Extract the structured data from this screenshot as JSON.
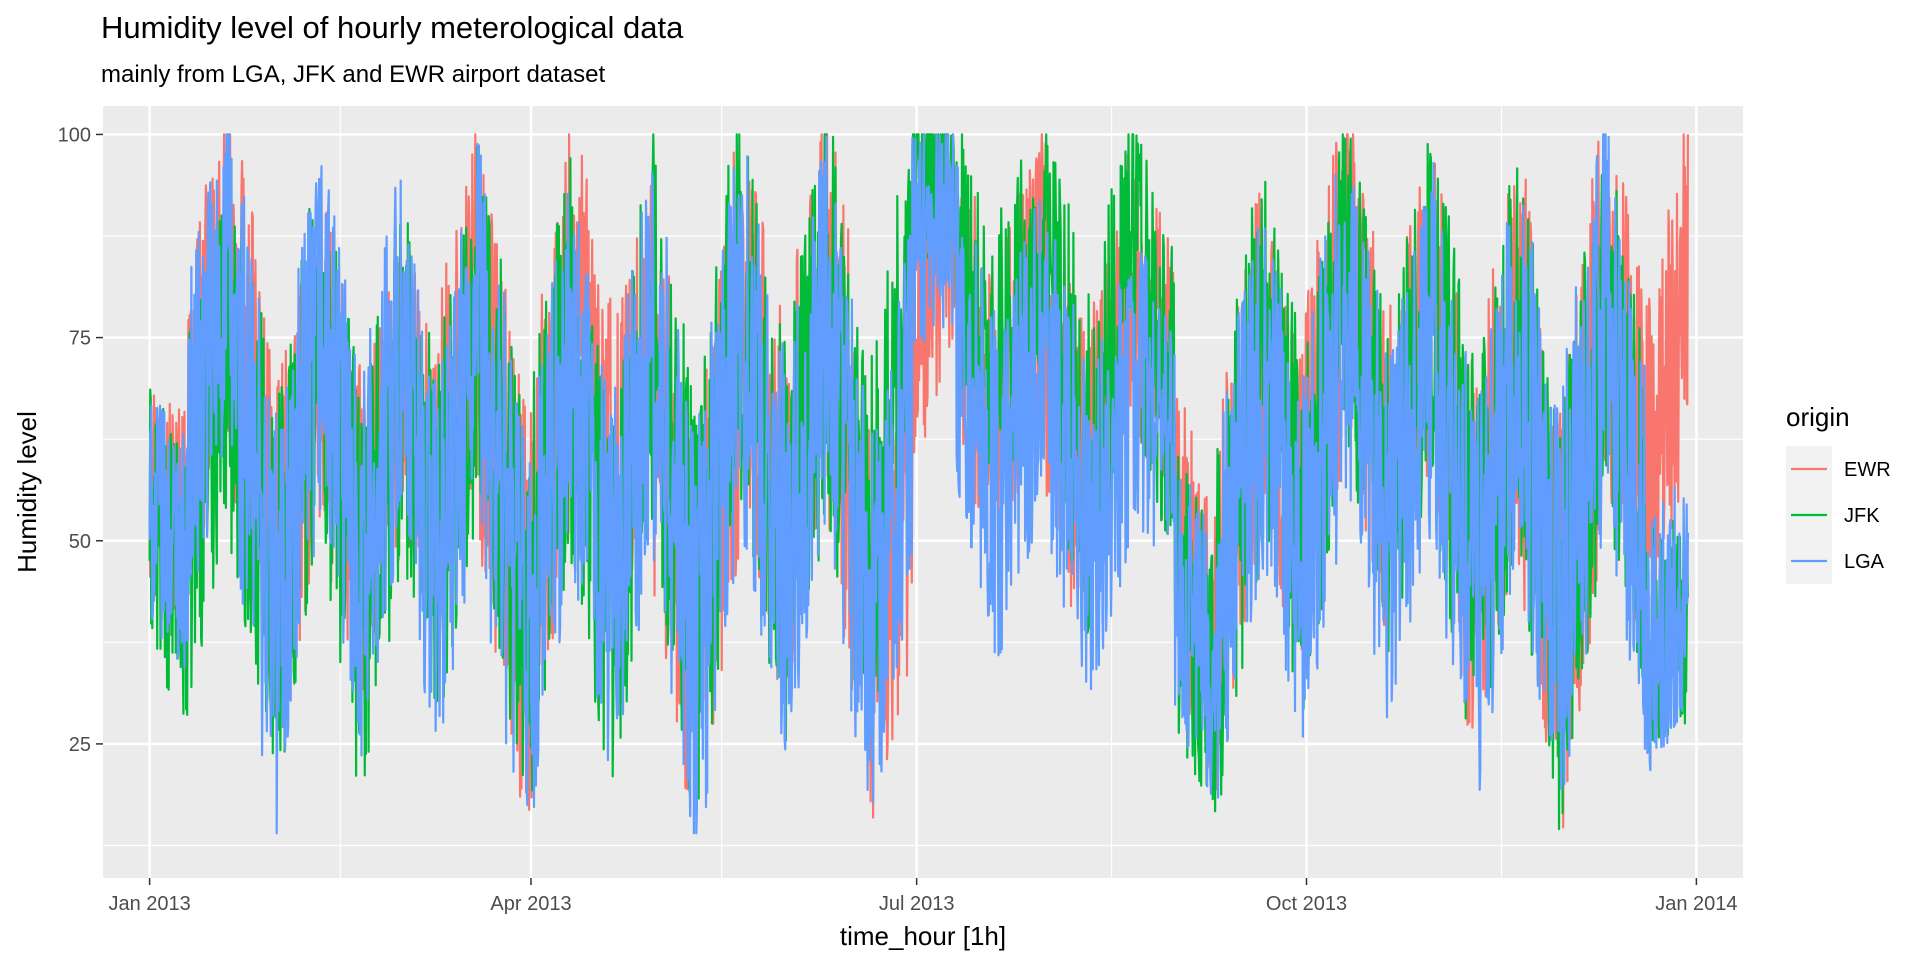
{
  "chart_data": {
    "type": "line",
    "title": "Humidity level of hourly meterological data",
    "subtitle": "mainly from LGA, JFK and EWR airport dataset",
    "xlabel": "time_hour [1h]",
    "ylabel": "Humidity level",
    "legend_title": "origin",
    "legend_position": "right",
    "grid": true,
    "xlim": [
      "2012-12-21",
      "2014-01-12"
    ],
    "ylim": [
      8.5,
      103.5
    ],
    "x_ticks": [
      {
        "value": "2013-01-01",
        "label": "Jan 2013"
      },
      {
        "value": "2013-04-01",
        "label": "Apr 2013"
      },
      {
        "value": "2013-07-01",
        "label": "Jul 2013"
      },
      {
        "value": "2013-10-01",
        "label": "Oct 2013"
      },
      {
        "value": "2014-01-01",
        "label": "Jan 2014"
      }
    ],
    "y_ticks": [
      25,
      50,
      75,
      100
    ],
    "x_minor_breaks": [
      "2013-02-15",
      "2013-05-16",
      "2013-08-16",
      "2013-11-16"
    ],
    "y_minor_breaks": [
      12.5,
      37.5,
      62.5,
      87.5
    ],
    "series": [
      {
        "name": "EWR",
        "color": "#F8766D",
        "x": [
          "2013-01-01",
          "2013-01-10",
          "2013-01-20",
          "2013-01-31",
          "2013-02-10",
          "2013-02-20",
          "2013-03-01",
          "2013-03-10",
          "2013-03-20",
          "2013-03-31",
          "2013-04-10",
          "2013-04-20",
          "2013-04-30",
          "2013-05-10",
          "2013-05-20",
          "2013-05-31",
          "2013-06-10",
          "2013-06-20",
          "2013-06-30",
          "2013-07-10",
          "2013-07-20",
          "2013-07-31",
          "2013-08-10",
          "2013-08-20",
          "2013-08-31",
          "2013-09-10",
          "2013-09-20",
          "2013-09-30",
          "2013-10-10",
          "2013-10-20",
          "2013-10-31",
          "2013-11-10",
          "2013-11-20",
          "2013-11-30",
          "2013-12-10",
          "2013-12-20",
          "2013-12-30"
        ],
        "y": [
          62,
          48,
          99,
          30,
          87,
          36,
          80,
          45,
          95,
          19,
          98,
          40,
          89,
          15,
          97,
          35,
          100,
          22,
          70,
          92,
          55,
          94,
          40,
          90,
          62,
          27,
          88,
          38,
          100,
          45,
          92,
          28,
          95,
          17,
          100,
          40,
          100
        ]
      },
      {
        "name": "JFK",
        "color": "#00BA38",
        "x": [
          "2013-01-01",
          "2013-01-10",
          "2013-01-20",
          "2013-01-31",
          "2013-02-10",
          "2013-02-20",
          "2013-03-01",
          "2013-03-10",
          "2013-03-20",
          "2013-03-31",
          "2013-04-10",
          "2013-04-20",
          "2013-04-30",
          "2013-05-10",
          "2013-05-20",
          "2013-05-31",
          "2013-06-10",
          "2013-06-20",
          "2013-06-30",
          "2013-07-10",
          "2013-07-20",
          "2013-07-31",
          "2013-08-10",
          "2013-08-20",
          "2013-08-31",
          "2013-09-10",
          "2013-09-20",
          "2013-09-30",
          "2013-10-10",
          "2013-10-20",
          "2013-10-31",
          "2013-11-10",
          "2013-11-20",
          "2013-11-30",
          "2013-12-10",
          "2013-12-20",
          "2013-12-30"
        ],
        "y": [
          60,
          36,
          93,
          24,
          95,
          23,
          88,
          33,
          96,
          21,
          92,
          25,
          96,
          18,
          100,
          30,
          98,
          26,
          98,
          95,
          60,
          98,
          45,
          95,
          55,
          21,
          92,
          35,
          98,
          40,
          96,
          26,
          94,
          18,
          96,
          35,
          43
        ]
      },
      {
        "name": "LGA",
        "color": "#619CFF",
        "x": [
          "2013-01-01",
          "2013-01-10",
          "2013-01-20",
          "2013-01-31",
          "2013-02-10",
          "2013-02-20",
          "2013-03-01",
          "2013-03-10",
          "2013-03-20",
          "2013-03-31",
          "2013-04-10",
          "2013-04-20",
          "2013-04-30",
          "2013-05-10",
          "2013-05-20",
          "2013-05-31",
          "2013-06-10",
          "2013-06-20",
          "2013-06-30",
          "2013-07-10",
          "2013-07-20",
          "2013-07-31",
          "2013-08-10",
          "2013-08-20",
          "2013-08-31",
          "2013-09-10",
          "2013-09-20",
          "2013-09-30",
          "2013-10-10",
          "2013-10-20",
          "2013-10-31",
          "2013-11-10",
          "2013-11-20",
          "2013-11-30",
          "2013-12-10",
          "2013-12-20",
          "2013-12-30"
        ],
        "y": [
          57,
          45,
          100,
          17,
          95,
          30,
          90,
          28,
          95,
          14,
          90,
          26,
          93,
          13,
          97,
          29,
          95,
          20,
          85,
          92,
          43,
          87,
          37,
          80,
          52,
          25,
          86,
          30,
          95,
          35,
          90,
          23,
          92,
          20,
          100,
          29,
          51
        ]
      }
    ]
  }
}
